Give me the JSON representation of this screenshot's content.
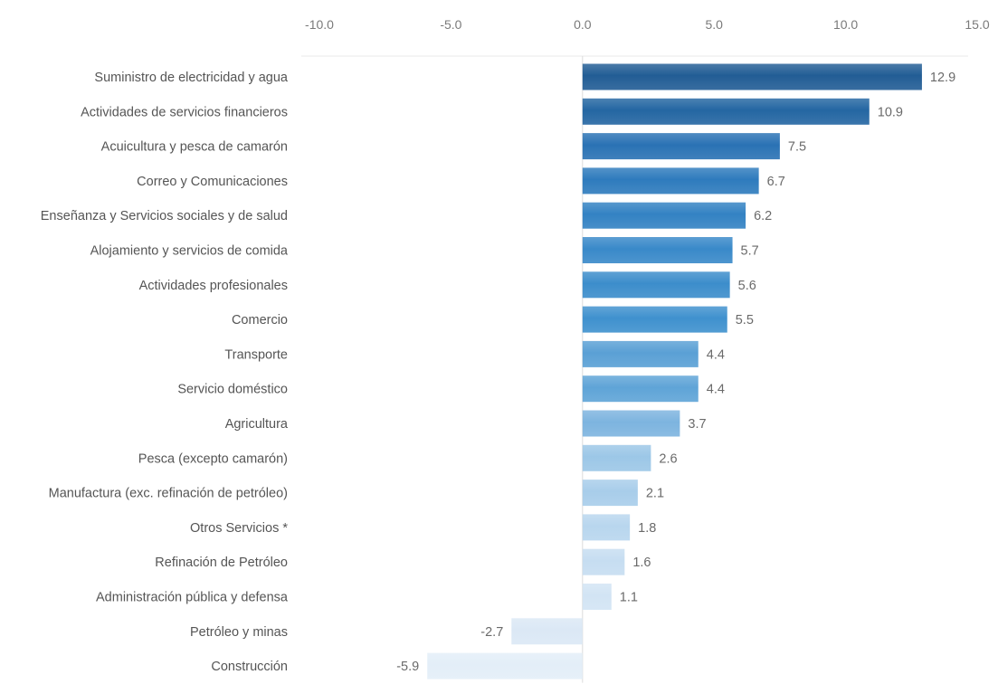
{
  "chart_data": {
    "type": "bar",
    "orientation": "horizontal",
    "title": "",
    "xlabel": "",
    "ylabel": "",
    "xlim": [
      -10,
      15
    ],
    "x_ticks": [
      "-10.0",
      "-5.0",
      "0.0",
      "5.0",
      "10.0",
      "15.0"
    ],
    "grid": false,
    "legend": "none",
    "categories": [
      "Suministro de electricidad y agua",
      "Actividades de servicios financieros",
      "Acuicultura y pesca de camarón",
      "Correo y Comunicaciones",
      "Enseñanza  y Servicios sociales y de salud",
      "Alojamiento y servicios de comida",
      "Actividades profesionales",
      "Comercio",
      "Transporte",
      "Servicio doméstico",
      "Agricultura",
      "Pesca (excepto camarón)",
      "Manufactura (exc. refinación de petróleo)",
      "Otros Servicios *",
      "Refinación de Petróleo",
      "Administración pública y defensa",
      "Petróleo y minas",
      "Construcción"
    ],
    "values": [
      12.9,
      10.9,
      7.5,
      6.7,
      6.2,
      5.7,
      5.6,
      5.5,
      4.4,
      4.4,
      3.7,
      2.6,
      2.1,
      1.8,
      1.6,
      1.1,
      -2.7,
      -5.9
    ],
    "value_labels": [
      "12.9",
      "10.9",
      "7.5",
      "6.7",
      "6.2",
      "5.7",
      "5.6",
      "5.5",
      "4.4",
      "4.4",
      "3.7",
      "2.6",
      "2.1",
      "1.8",
      "1.6",
      "1.1",
      "-2.7",
      "-5.9"
    ],
    "colors": [
      "#225d95",
      "#2466a2",
      "#2a72b4",
      "#2e7bbd",
      "#3382c3",
      "#3989c9",
      "#3c8dcb",
      "#3f91ce",
      "#5aa0d5",
      "#5fa4d7",
      "#7db4df",
      "#9cc7e7",
      "#a8cdea",
      "#b8d6ee",
      "#c6ddf1",
      "#d2e4f4",
      "#dbe8f5",
      "#e3eef8"
    ]
  }
}
